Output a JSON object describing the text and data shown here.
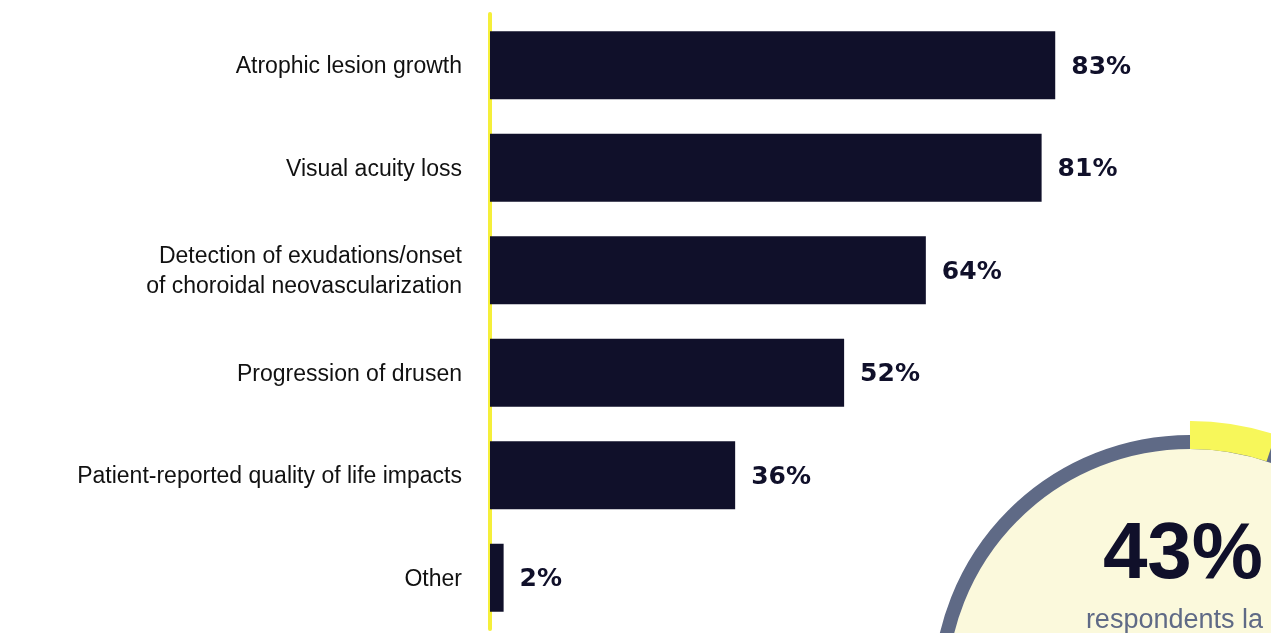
{
  "chart_data": {
    "type": "bar",
    "orientation": "horizontal",
    "categories": [
      "Atrophic lesion growth",
      "Visual acuity loss",
      "Detection of exudations/onset\nof choroidal neovascularization",
      "Progression of drusen",
      "Patient-reported quality of life impacts",
      "Other"
    ],
    "values": [
      83,
      81,
      64,
      52,
      36,
      2
    ],
    "color": "#10102a",
    "value_labels": [
      "83%",
      "81%",
      "64%",
      "52%",
      "36%",
      "2%"
    ],
    "annotations": [
      "43%",
      "respondents la"
    ]
  }
}
